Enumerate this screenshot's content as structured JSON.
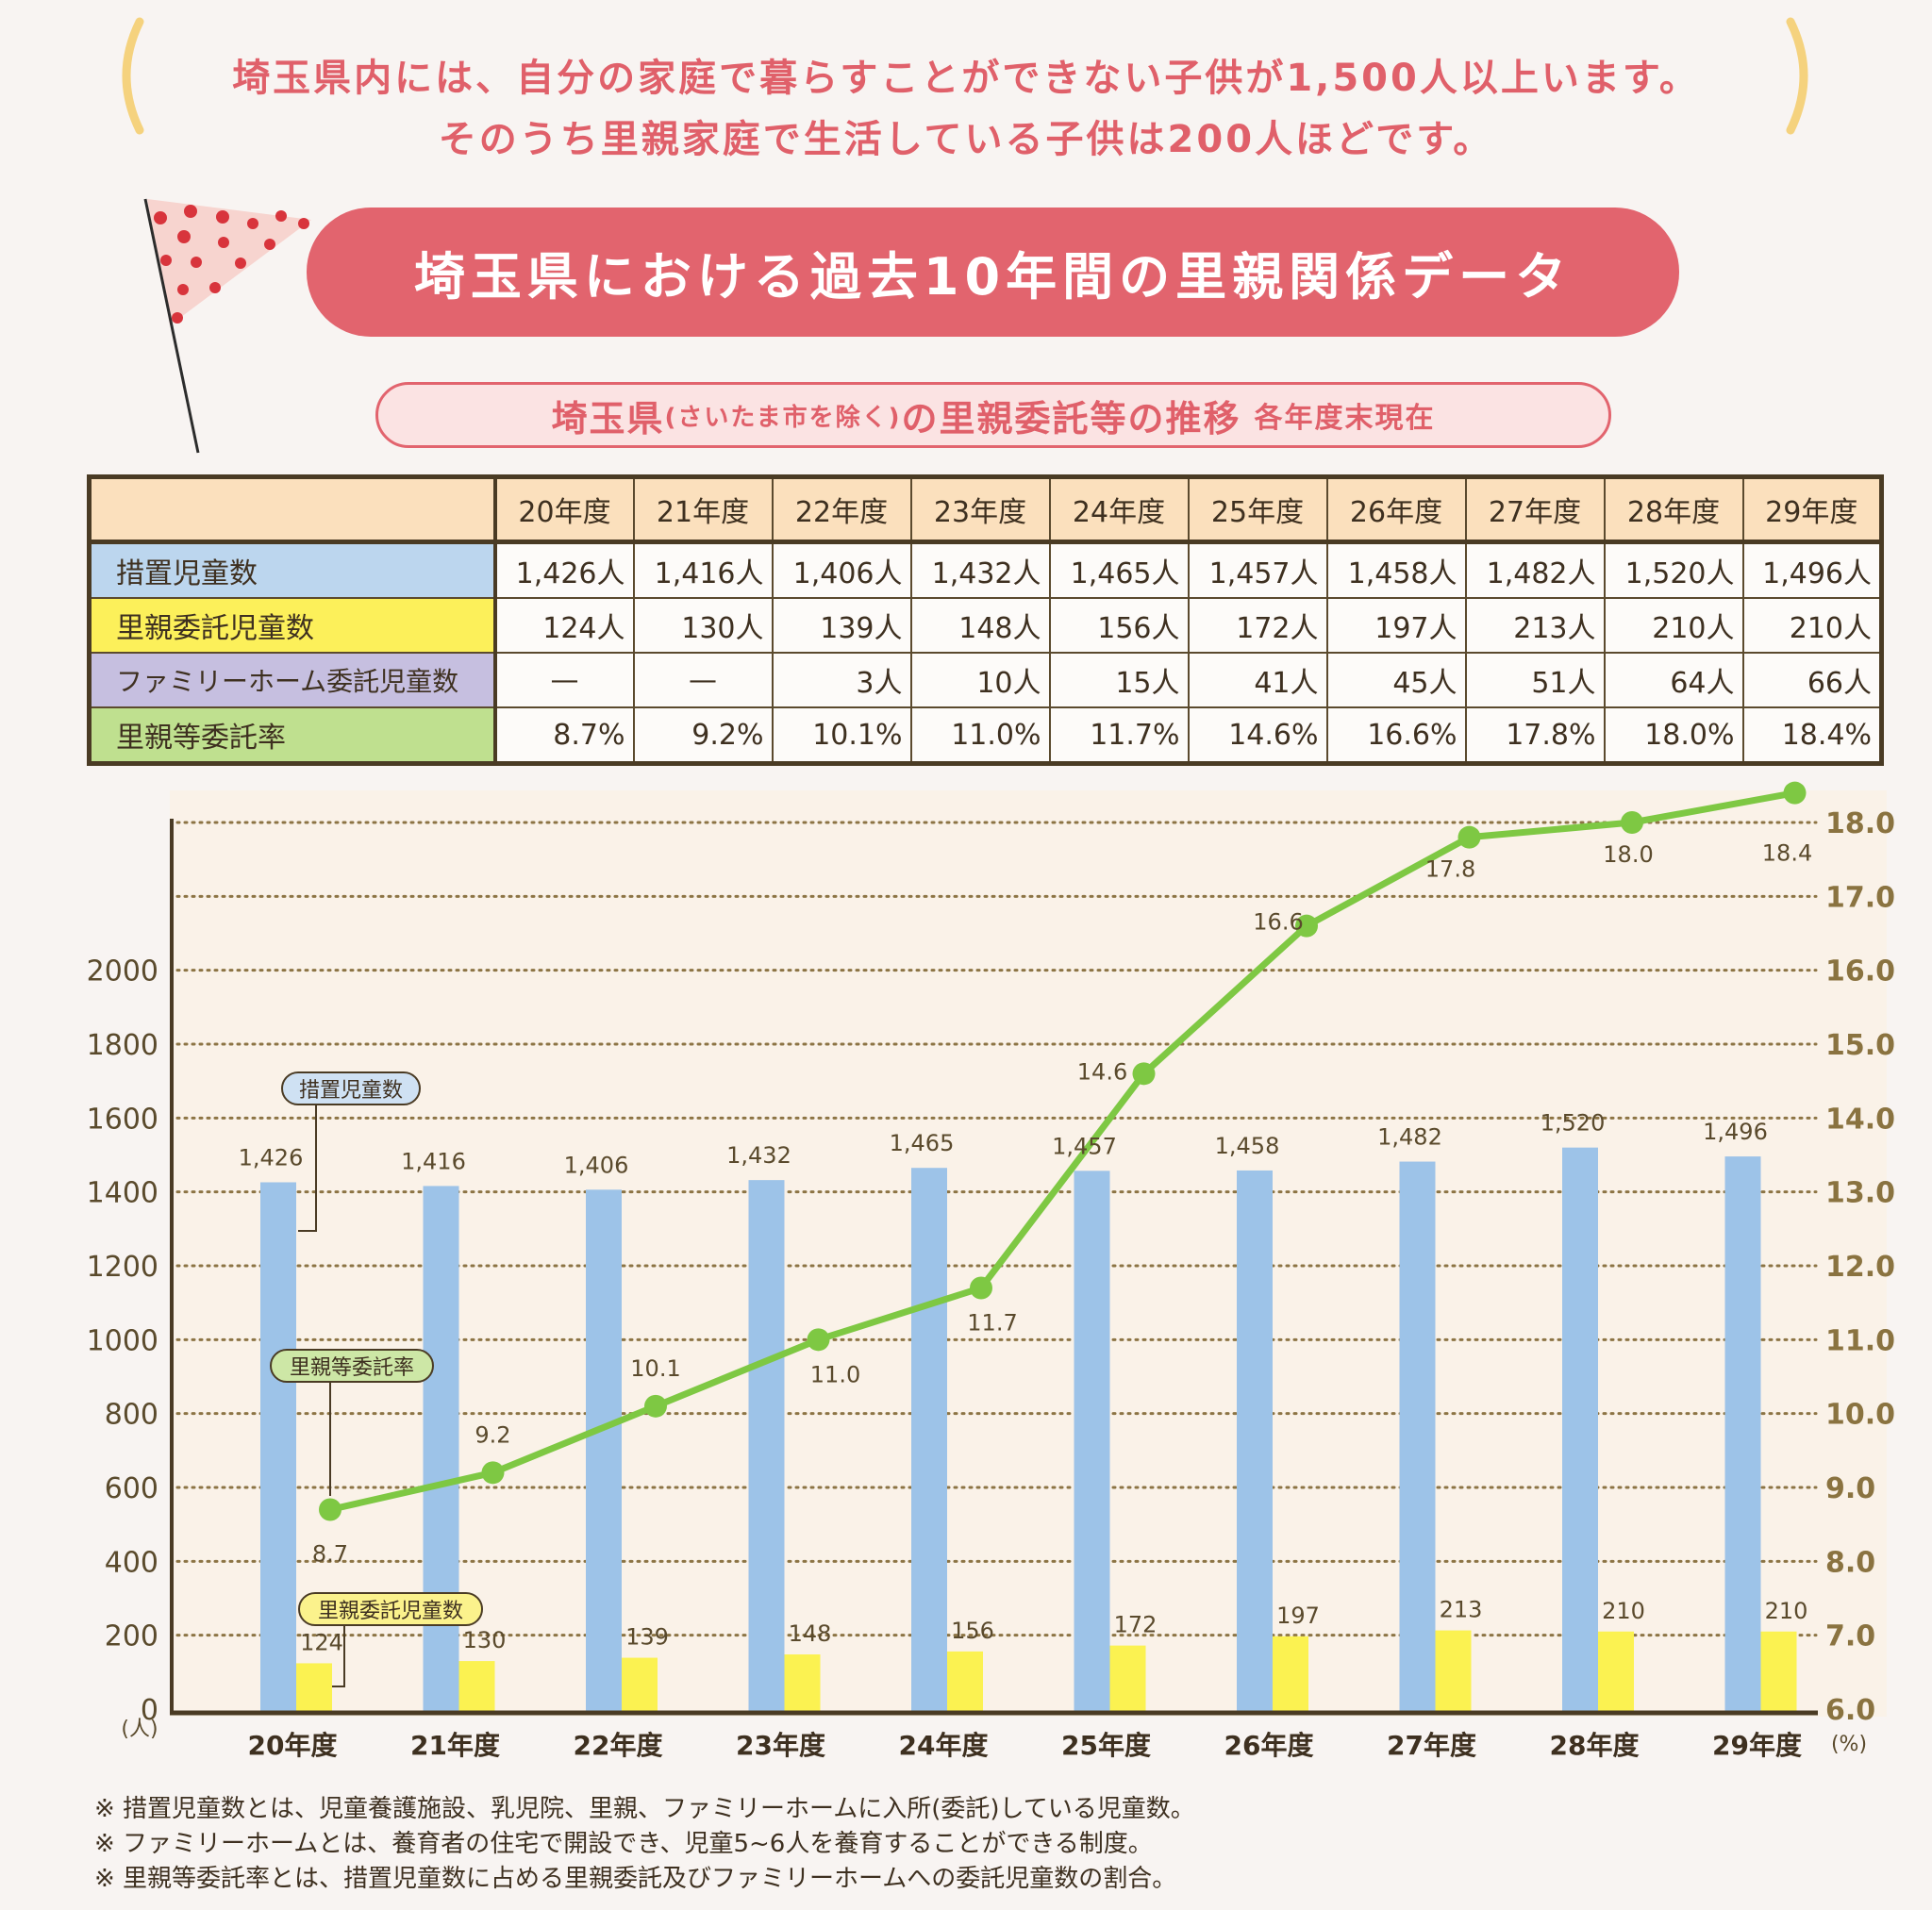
{
  "intro": {
    "line1": "埼玉県内には、自分の家庭で暮らすことができない子供が1,500人以上います。",
    "line2": "そのうち里親家庭で生活している子供は200人ほどです。"
  },
  "banner": {
    "title": "埼玉県における過去10年間の里親関係データ",
    "icon": "flag-icon"
  },
  "subtitle": {
    "main_prefix": "埼玉県",
    "main_paren": "(さいたま市を除く)",
    "main_suffix": "の里親委託等の推移",
    "note": "各年度末現在"
  },
  "table": {
    "columns": [
      "20年度",
      "21年度",
      "22年度",
      "23年度",
      "24年度",
      "25年度",
      "26年度",
      "27年度",
      "28年度",
      "29年度"
    ],
    "rows": [
      {
        "label": "措置児童数",
        "color": "#bcd6ee",
        "values": [
          "1,426人",
          "1,416人",
          "1,406人",
          "1,432人",
          "1,465人",
          "1,457人",
          "1,458人",
          "1,482人",
          "1,520人",
          "1,496人"
        ]
      },
      {
        "label": "里親委託児童数",
        "color": "#fcf05a",
        "values": [
          "124人",
          "130人",
          "139人",
          "148人",
          "156人",
          "172人",
          "197人",
          "213人",
          "210人",
          "210人"
        ]
      },
      {
        "label": "ファミリーホーム委託児童数",
        "color": "#c6bfe0",
        "values": [
          "—",
          "—",
          "3人",
          "10人",
          "15人",
          "41人",
          "45人",
          "51人",
          "64人",
          "66人"
        ]
      },
      {
        "label": "里親等委託率",
        "color": "#bfe08f",
        "values": [
          "8.7%",
          "9.2%",
          "10.1%",
          "11.0%",
          "11.7%",
          "14.6%",
          "16.6%",
          "17.8%",
          "18.0%",
          "18.4%"
        ]
      }
    ]
  },
  "chart_data": {
    "type": "bar",
    "categories": [
      "20年度",
      "21年度",
      "22年度",
      "23年度",
      "24年度",
      "25年度",
      "26年度",
      "27年度",
      "28年度",
      "29年度"
    ],
    "series": [
      {
        "name": "措置児童数",
        "type": "bar",
        "axis": "left",
        "color": "#9dc3e8",
        "values": [
          1426,
          1416,
          1406,
          1432,
          1465,
          1457,
          1458,
          1482,
          1520,
          1496
        ],
        "labels": [
          "1,426",
          "1,416",
          "1,406",
          "1,432",
          "1,465",
          "1,457",
          "1,458",
          "1,482",
          "1,520",
          "1,496"
        ]
      },
      {
        "name": "里親委託児童数",
        "type": "bar",
        "axis": "left",
        "color": "#fbf251",
        "values": [
          124,
          130,
          139,
          148,
          156,
          172,
          197,
          213,
          210,
          210
        ],
        "labels": [
          "124",
          "130",
          "139",
          "148",
          "156",
          "172",
          "197",
          "213",
          "210",
          "210"
        ]
      },
      {
        "name": "里親等委託率",
        "type": "line",
        "axis": "right",
        "color": "#7ec843",
        "values": [
          8.7,
          9.2,
          10.1,
          11.0,
          11.7,
          14.6,
          16.6,
          17.8,
          18.0,
          18.4
        ],
        "labels": [
          "8.7",
          "9.2",
          "10.1",
          "11.0",
          "11.7",
          "14.6",
          "16.6",
          "17.8",
          "18.0",
          "18.4"
        ]
      }
    ],
    "y_left": {
      "range": [
        0,
        2400
      ],
      "ticks": [
        "0",
        "200",
        "400",
        "600",
        "800",
        "1000",
        "1200",
        "1400",
        "1600",
        "1800",
        "2000"
      ],
      "unit": "(人)"
    },
    "y_right": {
      "range": [
        6.0,
        18.0
      ],
      "ticks": [
        "6.0",
        "7.0",
        "8.0",
        "9.0",
        "10.0",
        "11.0",
        "12.0",
        "13.0",
        "14.0",
        "15.0",
        "16.0",
        "17.0",
        "18.0"
      ],
      "unit": "(%)"
    },
    "grid": true,
    "callouts": {
      "bar_main": "措置児童数",
      "line": "里親等委託率",
      "bar_sub": "里親委託児童数"
    }
  },
  "notes": [
    "※ 措置児童数とは、児童養護施設、乳児院、里親、ファミリーホームに入所(委託)している児童数。",
    "※ ファミリーホームとは、養育者の住宅で開設でき、児童5~6人を養育することができる制度。",
    "※ 里親等委託率とは、措置児童数に占める里親委託及びファミリーホームへの委託児童数の割合。"
  ]
}
